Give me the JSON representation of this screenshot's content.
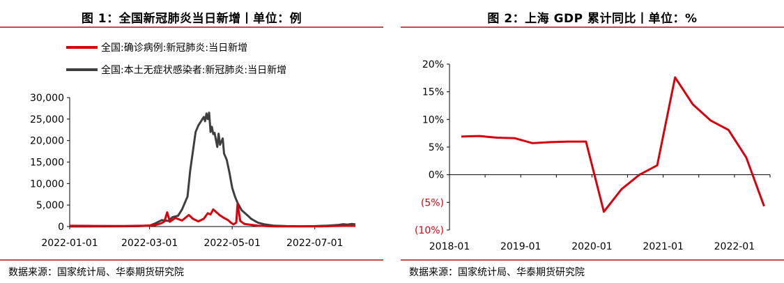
{
  "chart_data": [
    {
      "type": "line",
      "title": "图 1：全国新冠肺炎当日新增丨单位：例",
      "xlabel": "",
      "ylabel": "",
      "ylim": [
        0,
        30000
      ],
      "yticks": [
        "0",
        "5,000",
        "10,000",
        "15,000",
        "20,000",
        "25,000",
        "30,000"
      ],
      "xticks": [
        "2022-01-01",
        "2022-03-01",
        "2022-05-01",
        "2022-07-01"
      ],
      "xrange": [
        "2022-01-01",
        "2022-07-31"
      ],
      "grid": false,
      "legend_position": "top-left",
      "series": [
        {
          "name": "全国:确诊病例:新冠肺炎:当日新增",
          "color": "#d9000e",
          "points": [
            [
              "2022-01-01",
              180
            ],
            [
              "2022-01-20",
              150
            ],
            [
              "2022-02-10",
              120
            ],
            [
              "2022-02-25",
              200
            ],
            [
              "2022-03-05",
              300
            ],
            [
              "2022-03-10",
              800
            ],
            [
              "2022-03-12",
              1200
            ],
            [
              "2022-03-14",
              3300
            ],
            [
              "2022-03-16",
              1100
            ],
            [
              "2022-03-20",
              2000
            ],
            [
              "2022-03-25",
              1400
            ],
            [
              "2022-03-30",
              2700
            ],
            [
              "2022-04-02",
              1800
            ],
            [
              "2022-04-06",
              1200
            ],
            [
              "2022-04-10",
              1800
            ],
            [
              "2022-04-13",
              3100
            ],
            [
              "2022-04-15",
              2800
            ],
            [
              "2022-04-17",
              4000
            ],
            [
              "2022-04-19",
              3400
            ],
            [
              "2022-04-22",
              2600
            ],
            [
              "2022-04-25",
              2000
            ],
            [
              "2022-04-28",
              1500
            ],
            [
              "2022-04-30",
              900
            ],
            [
              "2022-05-02",
              500
            ],
            [
              "2022-05-04",
              900
            ],
            [
              "2022-05-05",
              5300
            ],
            [
              "2022-05-07",
              1300
            ],
            [
              "2022-05-10",
              600
            ],
            [
              "2022-05-20",
              200
            ],
            [
              "2022-06-01",
              50
            ],
            [
              "2022-06-20",
              30
            ],
            [
              "2022-07-05",
              50
            ],
            [
              "2022-07-15",
              120
            ],
            [
              "2022-07-25",
              180
            ],
            [
              "2022-07-31",
              150
            ]
          ]
        },
        {
          "name": "全国:本土无症状感染者:新冠肺炎:当日新增",
          "color": "#3f3f3f",
          "points": [
            [
              "2022-01-01",
              20
            ],
            [
              "2022-02-01",
              40
            ],
            [
              "2022-02-20",
              80
            ],
            [
              "2022-03-01",
              200
            ],
            [
              "2022-03-05",
              700
            ],
            [
              "2022-03-10",
              1500
            ],
            [
              "2022-03-15",
              1300
            ],
            [
              "2022-03-18",
              2200
            ],
            [
              "2022-03-22",
              2500
            ],
            [
              "2022-03-25",
              4000
            ],
            [
              "2022-03-27",
              5500
            ],
            [
              "2022-03-29",
              7000
            ],
            [
              "2022-03-31",
              13000
            ],
            [
              "2022-04-02",
              17500
            ],
            [
              "2022-04-04",
              22000
            ],
            [
              "2022-04-06",
              23500
            ],
            [
              "2022-04-08",
              24500
            ],
            [
              "2022-04-10",
              25500
            ],
            [
              "2022-04-11",
              24500
            ],
            [
              "2022-04-12",
              26300
            ],
            [
              "2022-04-13",
              25000
            ],
            [
              "2022-04-14",
              26500
            ],
            [
              "2022-04-15",
              22000
            ],
            [
              "2022-04-16",
              23200
            ],
            [
              "2022-04-17",
              21500
            ],
            [
              "2022-04-18",
              21800
            ],
            [
              "2022-04-20",
              18500
            ],
            [
              "2022-04-21",
              21600
            ],
            [
              "2022-04-22",
              19000
            ],
            [
              "2022-04-24",
              20500
            ],
            [
              "2022-04-25",
              17000
            ],
            [
              "2022-04-27",
              15500
            ],
            [
              "2022-04-29",
              12500
            ],
            [
              "2022-05-01",
              9000
            ],
            [
              "2022-05-03",
              7000
            ],
            [
              "2022-05-05",
              5500
            ],
            [
              "2022-05-08",
              3800
            ],
            [
              "2022-05-12",
              2700
            ],
            [
              "2022-05-15",
              1800
            ],
            [
              "2022-05-20",
              900
            ],
            [
              "2022-05-25",
              500
            ],
            [
              "2022-06-01",
              200
            ],
            [
              "2022-06-10",
              100
            ],
            [
              "2022-06-20",
              60
            ],
            [
              "2022-07-01",
              100
            ],
            [
              "2022-07-10",
              200
            ],
            [
              "2022-07-18",
              350
            ],
            [
              "2022-07-22",
              550
            ],
            [
              "2022-07-25",
              450
            ],
            [
              "2022-07-28",
              600
            ],
            [
              "2022-07-31",
              500
            ]
          ]
        }
      ],
      "source": "数据来源：国家统计局、华泰期货研究院"
    },
    {
      "type": "line",
      "title": "图 2：上海 GDP 累计同比丨单位：%",
      "xlabel": "",
      "ylabel": "",
      "ylim": [
        -10,
        20
      ],
      "yticks": [
        "(10%)",
        "(5%)",
        "0%",
        "5%",
        "10%",
        "15%",
        "20%"
      ],
      "xticks": [
        "2018-01",
        "2019-01",
        "2020-01",
        "2021-01",
        "2022-01"
      ],
      "xrange": [
        "2018-01",
        "2022-07"
      ],
      "grid": false,
      "legend_position": "none",
      "series": [
        {
          "name": "",
          "color": "#d9000e",
          "points": [
            [
              "2018-03",
              6.9
            ],
            [
              "2018-06",
              7.0
            ],
            [
              "2018-09",
              6.7
            ],
            [
              "2018-12",
              6.6
            ],
            [
              "2019-03",
              5.7
            ],
            [
              "2019-06",
              5.9
            ],
            [
              "2019-09",
              6.0
            ],
            [
              "2019-12",
              6.0
            ],
            [
              "2020-03",
              -6.7
            ],
            [
              "2020-06",
              -2.6
            ],
            [
              "2020-09",
              0.0
            ],
            [
              "2020-12",
              1.7
            ],
            [
              "2021-03",
              17.6
            ],
            [
              "2021-06",
              12.7
            ],
            [
              "2021-09",
              9.8
            ],
            [
              "2021-12",
              8.1
            ],
            [
              "2022-03",
              3.1
            ],
            [
              "2022-06",
              -5.7
            ]
          ]
        }
      ],
      "source": "数据来源：国家统计局、华泰期货研究院"
    }
  ]
}
